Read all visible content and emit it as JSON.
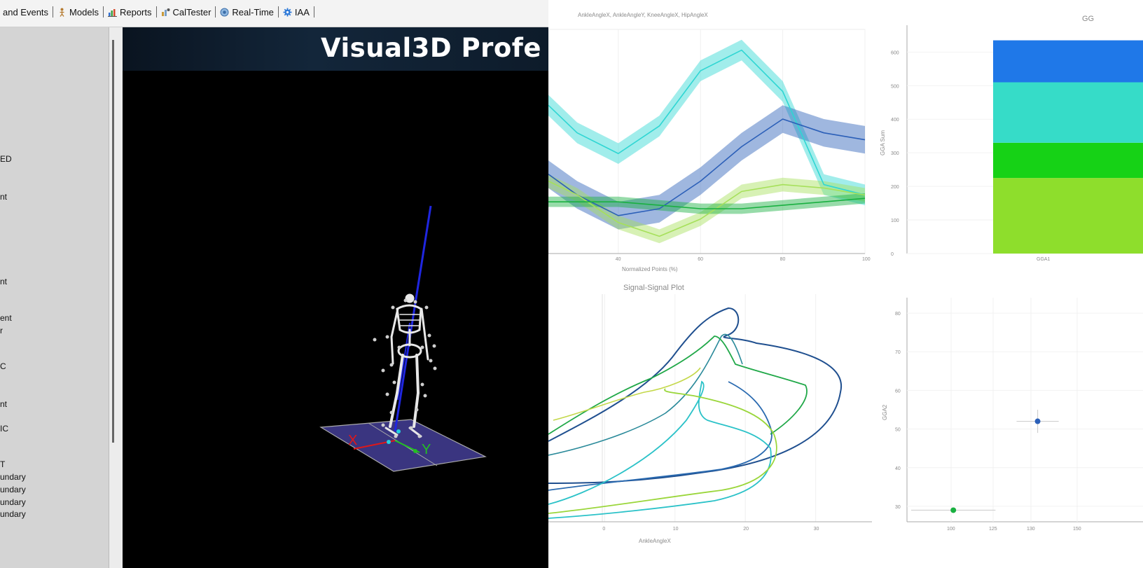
{
  "toolbar": {
    "items": [
      {
        "label": "and Events",
        "icon": "none"
      },
      {
        "label": "Models",
        "icon": "figure-icon"
      },
      {
        "label": "Reports",
        "icon": "bar-chart-icon"
      },
      {
        "label": "CalTester",
        "icon": "caltester-icon"
      },
      {
        "label": "Real-Time",
        "icon": "globe-icon"
      },
      {
        "label": "IAA",
        "icon": "gear-icon"
      }
    ]
  },
  "left_panel": {
    "items": [
      "ED",
      "nt",
      "nt",
      "ent",
      "r",
      "C",
      "nt",
      "IC",
      "T",
      "undary",
      "undary",
      "undary",
      "undary"
    ]
  },
  "viewport": {
    "title": "Visual3D Profe",
    "axis_x_label": "X",
    "axis_y_label": "Y"
  },
  "colors": {
    "cyan": "#2fd6d3",
    "blue": "#2b5fb8",
    "light_green": "#a6e05a",
    "green": "#19b040",
    "bar_blue": "#1f78e8",
    "bar_cyan": "#36dcc8",
    "bar_green": "#16d216",
    "bar_lime": "#8ede2c"
  },
  "chart_data": [
    {
      "type": "line",
      "title": "AnkleAngleX, AnkleAngleY, KneeAngleX, HipAngleX",
      "xlabel": "Normalized Points (%)",
      "ylabel": "",
      "xlim": [
        23,
        100
      ],
      "ylim": [
        -25,
        40
      ],
      "x_ticks": [
        "40",
        "60",
        "80",
        "100"
      ],
      "x": [
        23,
        30,
        40,
        50,
        60,
        70,
        80,
        90,
        100
      ],
      "series": [
        {
          "color": "cyan",
          "values": [
            18,
            10,
            4,
            12,
            28,
            34,
            22,
            -5,
            -8
          ],
          "band": 3
        },
        {
          "color": "blue",
          "values": [
            -2,
            -8,
            -14,
            -12,
            -4,
            6,
            14,
            10,
            8
          ],
          "band": 4
        },
        {
          "color": "light_green",
          "values": [
            -4,
            -8,
            -16,
            -20,
            -15,
            -7,
            -5,
            -6,
            -8
          ],
          "band": 2
        },
        {
          "color": "green",
          "values": [
            -10,
            -10,
            -10,
            -11,
            -12,
            -12,
            -11,
            -10,
            -9
          ],
          "band": 1.5
        }
      ]
    },
    {
      "type": "bar",
      "title": "GG",
      "xlabel": "",
      "ylabel": "GGA Sum",
      "categories": [
        "GGA1"
      ],
      "ylim": [
        0,
        680
      ],
      "y_ticks": [
        "0",
        "100",
        "200",
        "300",
        "400",
        "500",
        "600"
      ],
      "series": [
        {
          "color": "bar_lime",
          "values": [
            225
          ]
        },
        {
          "color": "bar_green",
          "values": [
            105
          ]
        },
        {
          "color": "bar_cyan",
          "values": [
            180
          ]
        },
        {
          "color": "bar_blue",
          "values": [
            125
          ]
        }
      ]
    },
    {
      "type": "line",
      "title": "Signal-Signal Plot",
      "xlabel": "AnkleAngleX",
      "ylabel": "",
      "xlim": [
        -8,
        38
      ],
      "ylim": [
        -20,
        30
      ],
      "x_ticks": [
        "0",
        "10",
        "20",
        "30"
      ]
    },
    {
      "type": "scatter",
      "title": "",
      "xlabel": "",
      "ylabel": "GGA2",
      "xlim": [
        99,
        155
      ],
      "ylim": [
        26,
        84
      ],
      "x_ticks": [
        "100",
        "125",
        "130",
        "150"
      ],
      "y_ticks": [
        "30",
        "40",
        "50",
        "60",
        "70",
        "80"
      ],
      "points": [
        {
          "x": 130,
          "y": 52,
          "color": "blue",
          "xerr": 5,
          "yerr": 3
        },
        {
          "x": 110,
          "y": 29,
          "color": "green",
          "xerr": 10,
          "yerr": 0.5
        }
      ]
    }
  ]
}
